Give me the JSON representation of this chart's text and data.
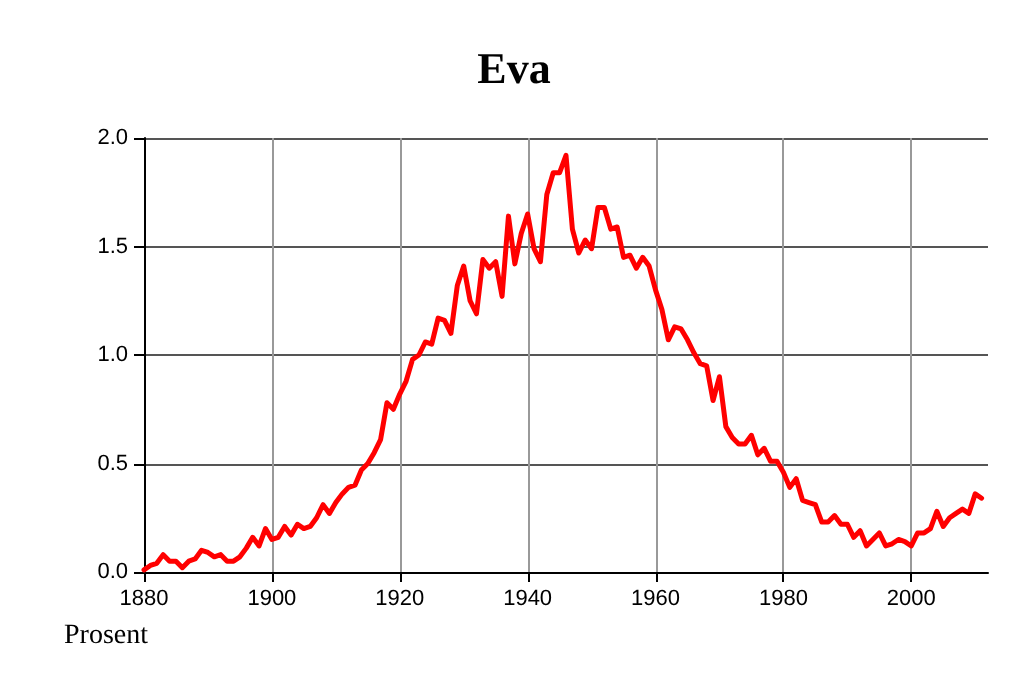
{
  "chart_data": {
    "type": "line",
    "title": "Eva",
    "ylabel": "Prosent",
    "x": [
      1880,
      1881,
      1882,
      1883,
      1884,
      1885,
      1886,
      1887,
      1888,
      1889,
      1890,
      1891,
      1892,
      1893,
      1894,
      1895,
      1896,
      1897,
      1898,
      1899,
      1900,
      1901,
      1902,
      1903,
      1904,
      1905,
      1906,
      1907,
      1908,
      1909,
      1910,
      1911,
      1912,
      1913,
      1914,
      1915,
      1916,
      1917,
      1918,
      1919,
      1920,
      1921,
      1922,
      1923,
      1924,
      1925,
      1926,
      1927,
      1928,
      1929,
      1930,
      1931,
      1932,
      1933,
      1934,
      1935,
      1936,
      1937,
      1938,
      1939,
      1940,
      1941,
      1942,
      1943,
      1944,
      1945,
      1946,
      1947,
      1948,
      1949,
      1950,
      1951,
      1952,
      1953,
      1954,
      1955,
      1956,
      1957,
      1958,
      1959,
      1960,
      1961,
      1962,
      1963,
      1964,
      1965,
      1966,
      1967,
      1968,
      1969,
      1970,
      1971,
      1972,
      1973,
      1974,
      1975,
      1976,
      1977,
      1978,
      1979,
      1980,
      1981,
      1982,
      1983,
      1984,
      1985,
      1986,
      1987,
      1988,
      1989,
      1990,
      1991,
      1992,
      1993,
      1994,
      1995,
      1996,
      1997,
      1998,
      1999,
      2000,
      2001,
      2002,
      2003,
      2004,
      2005,
      2006,
      2007,
      2008,
      2009,
      2010,
      2011
    ],
    "series": [
      {
        "color": "#ff0000",
        "values": [
          0.01,
          0.03,
          0.04,
          0.08,
          0.05,
          0.05,
          0.02,
          0.05,
          0.06,
          0.1,
          0.09,
          0.07,
          0.08,
          0.05,
          0.05,
          0.07,
          0.11,
          0.16,
          0.12,
          0.2,
          0.15,
          0.16,
          0.21,
          0.17,
          0.22,
          0.2,
          0.21,
          0.25,
          0.31,
          0.27,
          0.32,
          0.36,
          0.39,
          0.4,
          0.47,
          0.5,
          0.55,
          0.61,
          0.78,
          0.75,
          0.82,
          0.88,
          0.98,
          1.0,
          1.06,
          1.05,
          1.17,
          1.16,
          1.1,
          1.32,
          1.41,
          1.25,
          1.19,
          1.44,
          1.4,
          1.43,
          1.27,
          1.64,
          1.42,
          1.56,
          1.65,
          1.49,
          1.43,
          1.74,
          1.84,
          1.84,
          1.92,
          1.58,
          1.47,
          1.53,
          1.49,
          1.68,
          1.68,
          1.58,
          1.59,
          1.45,
          1.46,
          1.4,
          1.45,
          1.41,
          1.3,
          1.21,
          1.07,
          1.13,
          1.12,
          1.07,
          1.01,
          0.96,
          0.95,
          0.79,
          0.9,
          0.67,
          0.62,
          0.59,
          0.59,
          0.63,
          0.54,
          0.57,
          0.51,
          0.51,
          0.46,
          0.39,
          0.43,
          0.33,
          0.32,
          0.31,
          0.23,
          0.23,
          0.26,
          0.22,
          0.22,
          0.16,
          0.19,
          0.12,
          0.15,
          0.18,
          0.12,
          0.13,
          0.15,
          0.14,
          0.12,
          0.18,
          0.18,
          0.2,
          0.28,
          0.21,
          0.25,
          0.27,
          0.29,
          0.27,
          0.36,
          0.34
        ]
      }
    ],
    "xlim": [
      1880,
      2012
    ],
    "xticks": [
      1880,
      1900,
      1920,
      1940,
      1960,
      1980,
      2000
    ],
    "ylim": [
      0,
      2
    ],
    "yticks": [
      {
        "value": 0,
        "label": "0.0"
      },
      {
        "value": 0.5,
        "label": "0.5"
      },
      {
        "value": 1,
        "label": "1.0"
      },
      {
        "value": 1.5,
        "label": "1.5"
      },
      {
        "value": 2,
        "label": "2.0"
      }
    ],
    "grid": true,
    "marker": "none",
    "line_style": "solid"
  }
}
